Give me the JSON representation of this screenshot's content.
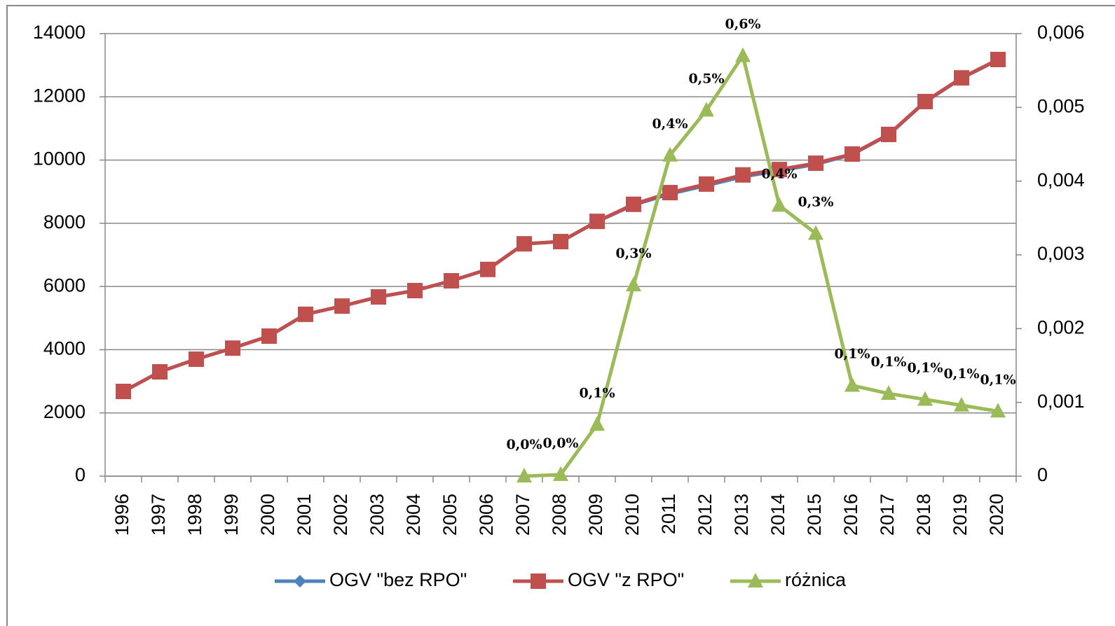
{
  "chart_data": {
    "type": "line",
    "categories": [
      "1996",
      "1997",
      "1998",
      "1999",
      "2000",
      "2001",
      "2002",
      "2003",
      "2004",
      "2005",
      "2006",
      "2007",
      "2008",
      "2009",
      "2010",
      "2011",
      "2012",
      "2013",
      "2014",
      "2015",
      "2016",
      "2017",
      "2018",
      "2019",
      "2020"
    ],
    "series": [
      {
        "name": "OGV \"bez RPO\"",
        "color": "#4f81bd",
        "marker": "diamond",
        "values": [
          2680,
          3300,
          3700,
          4050,
          4430,
          5120,
          5380,
          5670,
          5870,
          6180,
          6540,
          7350,
          7420,
          8054,
          8578,
          8931,
          9194,
          9476,
          9664,
          9867,
          10178,
          10798,
          11838,
          12588,
          13168
        ]
      },
      {
        "name": "OGV \"z RPO\"",
        "color": "#c0504d",
        "marker": "square",
        "values": [
          2680,
          3300,
          3700,
          4050,
          4430,
          5120,
          5380,
          5670,
          5870,
          6180,
          6540,
          7350,
          7420,
          8060,
          8600,
          8970,
          9240,
          9530,
          9700,
          9900,
          10190,
          10810,
          11850,
          12600,
          13180
        ]
      },
      {
        "name": "różnica",
        "color": "#9bbb59",
        "marker": "triangle",
        "axis": "y2",
        "values": [
          null,
          null,
          null,
          null,
          null,
          null,
          null,
          null,
          null,
          null,
          null,
          0,
          2e-05,
          0.0007,
          0.00259,
          0.00435,
          0.00496,
          0.0057,
          0.00367,
          0.00329,
          0.00123,
          0.00112,
          0.00104,
          0.00096,
          0.00088
        ],
        "value_labels": [
          null,
          null,
          null,
          null,
          null,
          null,
          null,
          null,
          null,
          null,
          null,
          "0,0%",
          "0,0%",
          "0,1%",
          "0,3%",
          "0,4%",
          "0,5%",
          "0,6%",
          "0,4%",
          "0,3%",
          "0,1%",
          "0,1%",
          "0,1%",
          "0,1%",
          "0,1%"
        ]
      }
    ],
    "ylim": [
      0,
      14000
    ],
    "yticks": [
      0,
      2000,
      4000,
      6000,
      8000,
      10000,
      12000,
      14000
    ],
    "y2lim": [
      0,
      0.006
    ],
    "y2ticks": [
      0,
      {
        "value": 0.001,
        "label": "0,001"
      },
      {
        "value": 0.002,
        "label": "0,002"
      },
      {
        "value": 0.003,
        "label": "0,003"
      },
      {
        "value": 0.004,
        "label": "0,004"
      },
      {
        "value": 0.005,
        "label": "0,005"
      },
      {
        "value": 0.006,
        "label": "0,006"
      }
    ],
    "grid": true,
    "legend": "bottom"
  }
}
